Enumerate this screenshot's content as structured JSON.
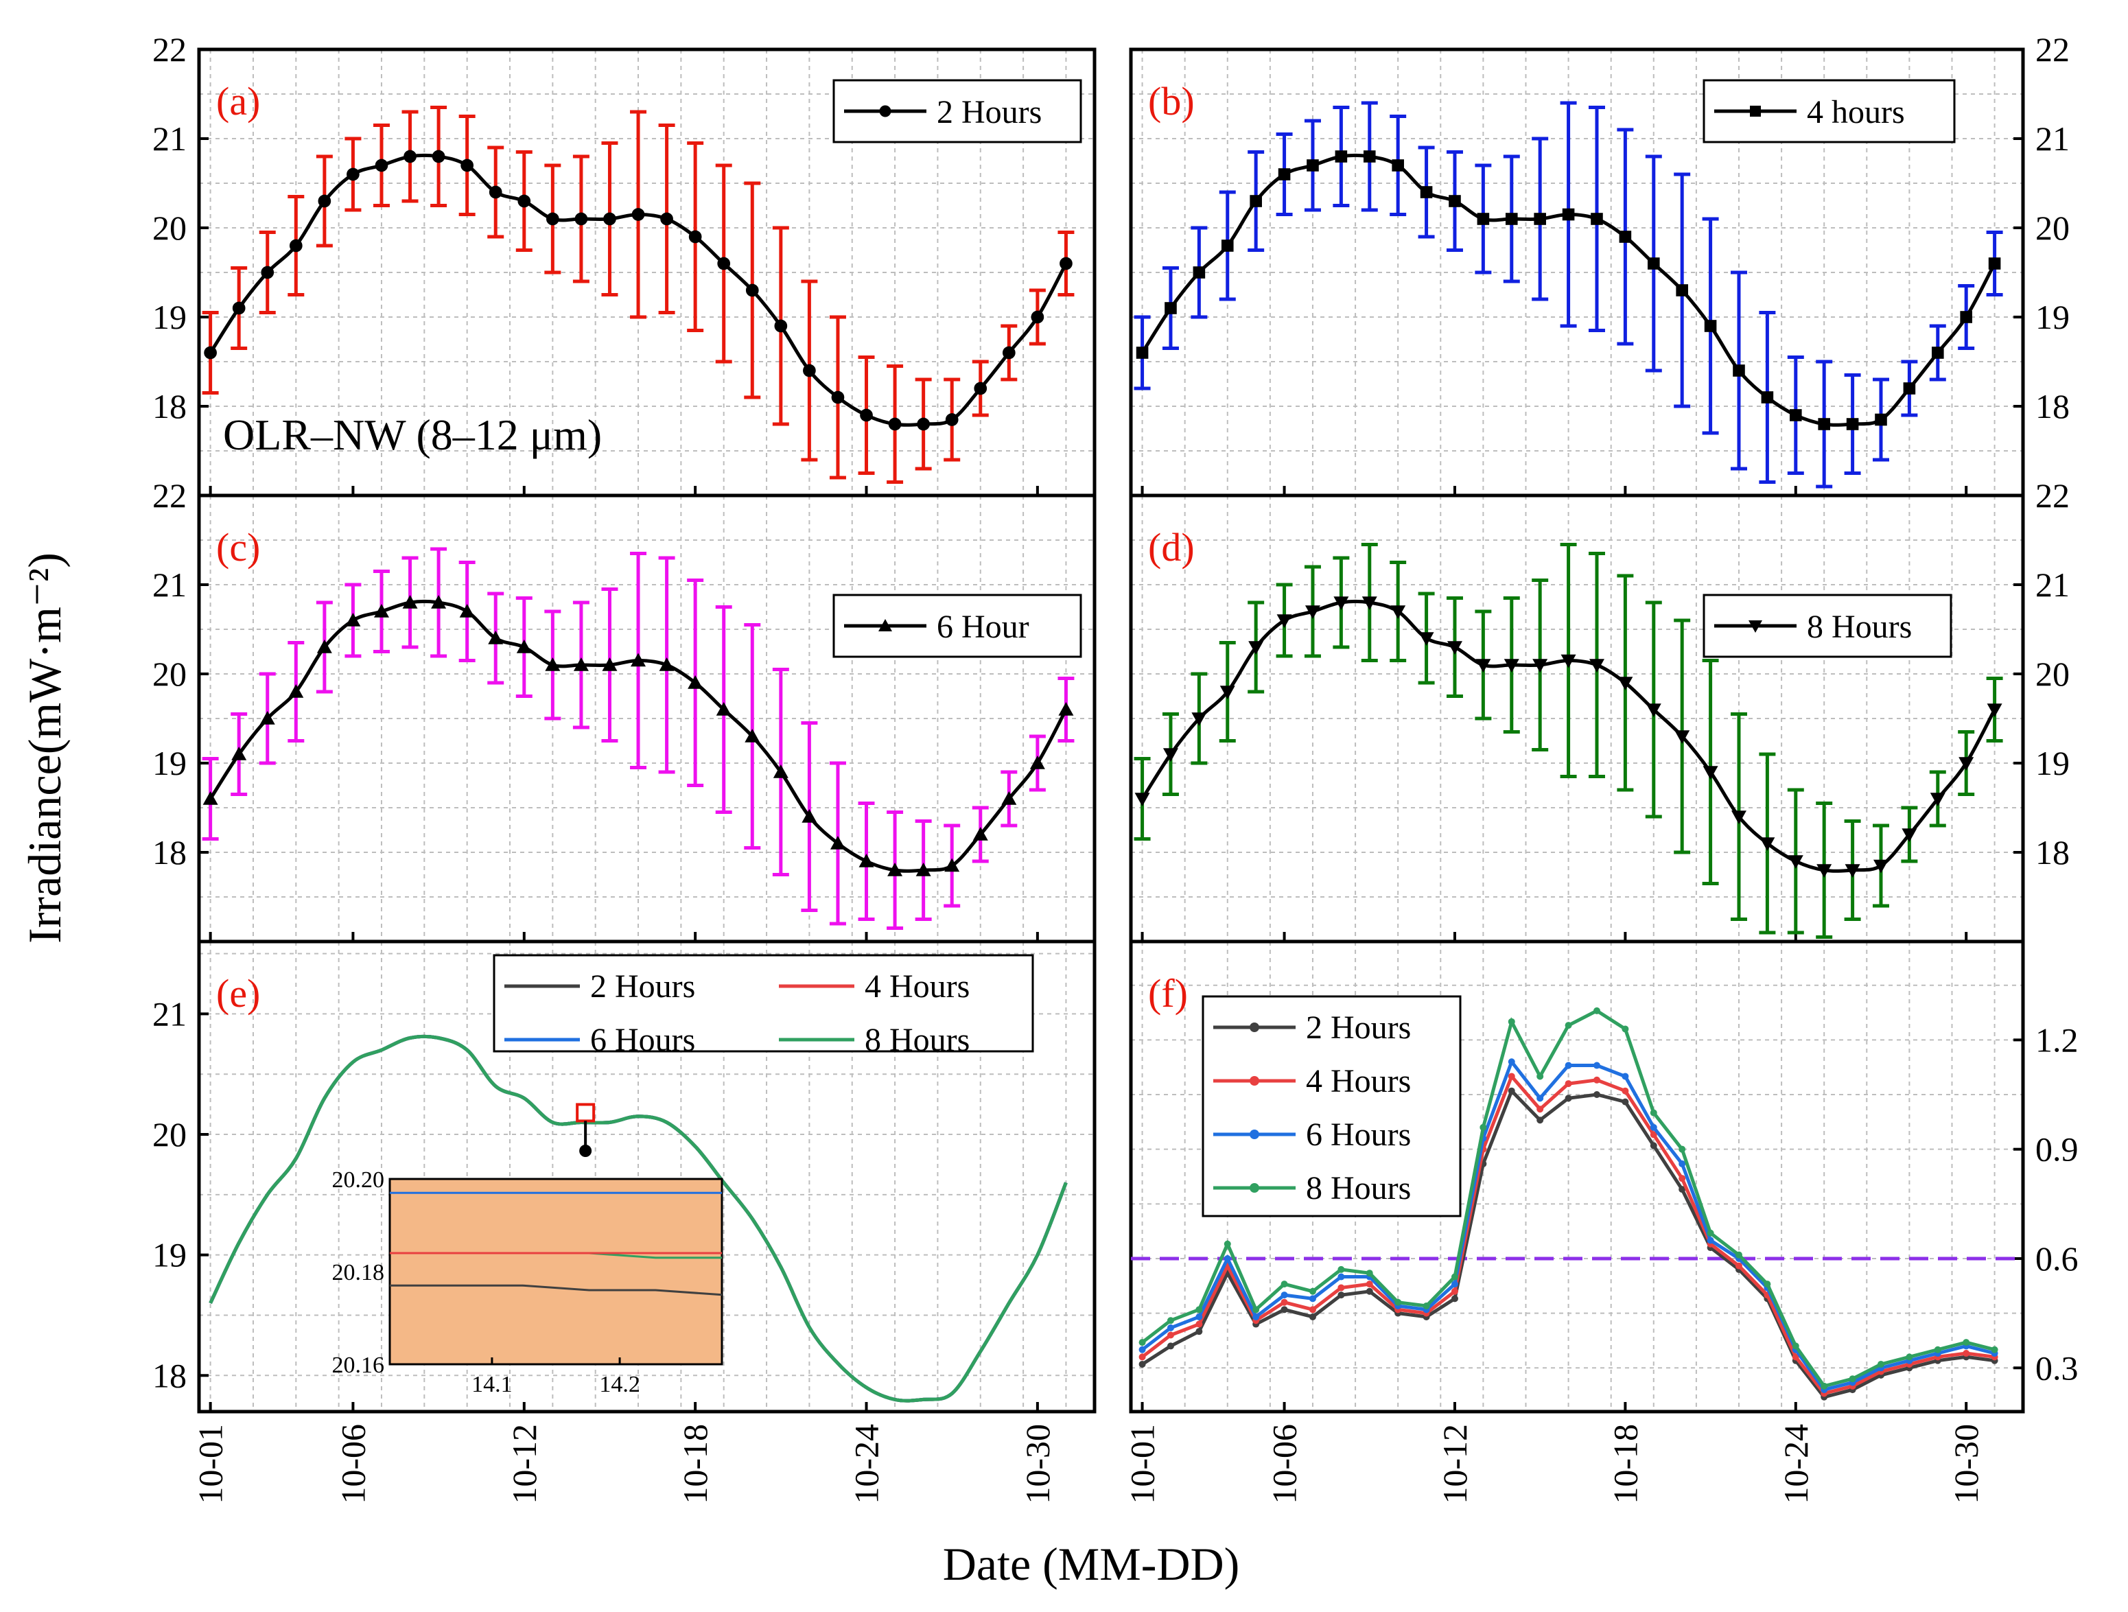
{
  "figure": {
    "ylabel": "Irradiance(mW·m⁻²)",
    "xlabel": "Date (MM-DD)",
    "annotation": "OLR–NW (8–12 μm)",
    "xticks": [
      "10-01",
      "10-06",
      "10-12",
      "10-18",
      "10-24",
      "10-30"
    ]
  },
  "chart_data": [
    {
      "id": "a",
      "type": "line",
      "panel_label": "(a)",
      "legend": "2 Hours",
      "marker": "circle",
      "error_color": "#e8180c",
      "x": [
        1,
        2,
        3,
        4,
        5,
        6,
        7,
        8,
        9,
        10,
        11,
        12,
        13,
        14,
        15,
        16,
        17,
        18,
        19,
        20,
        21,
        22,
        23,
        24,
        25,
        26,
        27,
        28,
        29,
        30,
        31
      ],
      "values": [
        18.6,
        19.1,
        19.5,
        19.8,
        20.3,
        20.6,
        20.7,
        20.8,
        20.8,
        20.7,
        20.4,
        20.3,
        20.1,
        20.1,
        20.1,
        20.15,
        20.1,
        19.9,
        19.6,
        19.3,
        18.9,
        18.4,
        18.1,
        17.9,
        17.8,
        17.8,
        17.85,
        18.2,
        18.6,
        19.0,
        19.6
      ],
      "errors": [
        0.45,
        0.45,
        0.45,
        0.55,
        0.5,
        0.4,
        0.45,
        0.5,
        0.55,
        0.55,
        0.5,
        0.55,
        0.6,
        0.7,
        0.85,
        1.15,
        1.05,
        1.05,
        1.1,
        1.2,
        1.1,
        1.0,
        0.9,
        0.65,
        0.65,
        0.5,
        0.45,
        0.3,
        0.3,
        0.3,
        0.35
      ],
      "ylim": [
        17,
        22
      ],
      "yticks": [
        18,
        19,
        20,
        21,
        22
      ],
      "yaxis_side": "left"
    },
    {
      "id": "b",
      "type": "line",
      "panel_label": "(b)",
      "legend": "4 hours",
      "marker": "square",
      "error_color": "#1020e0",
      "x": [
        1,
        2,
        3,
        4,
        5,
        6,
        7,
        8,
        9,
        10,
        11,
        12,
        13,
        14,
        15,
        16,
        17,
        18,
        19,
        20,
        21,
        22,
        23,
        24,
        25,
        26,
        27,
        28,
        29,
        30,
        31
      ],
      "values": [
        18.6,
        19.1,
        19.5,
        19.8,
        20.3,
        20.6,
        20.7,
        20.8,
        20.8,
        20.7,
        20.4,
        20.3,
        20.1,
        20.1,
        20.1,
        20.15,
        20.1,
        19.9,
        19.6,
        19.3,
        18.9,
        18.4,
        18.1,
        17.9,
        17.8,
        17.8,
        17.85,
        18.2,
        18.6,
        19.0,
        19.6
      ],
      "errors": [
        0.4,
        0.45,
        0.5,
        0.6,
        0.55,
        0.45,
        0.5,
        0.55,
        0.6,
        0.55,
        0.5,
        0.55,
        0.6,
        0.7,
        0.9,
        1.25,
        1.25,
        1.2,
        1.2,
        1.3,
        1.2,
        1.1,
        0.95,
        0.65,
        0.7,
        0.55,
        0.45,
        0.3,
        0.3,
        0.35,
        0.35
      ],
      "ylim": [
        17,
        22
      ],
      "yticks": [
        18,
        19,
        20,
        21,
        22
      ],
      "yaxis_side": "right"
    },
    {
      "id": "c",
      "type": "line",
      "panel_label": "(c)",
      "legend": "6 Hour",
      "marker": "triangle-up",
      "error_color": "#ee10ee",
      "x": [
        1,
        2,
        3,
        4,
        5,
        6,
        7,
        8,
        9,
        10,
        11,
        12,
        13,
        14,
        15,
        16,
        17,
        18,
        19,
        20,
        21,
        22,
        23,
        24,
        25,
        26,
        27,
        28,
        29,
        30,
        31
      ],
      "values": [
        18.6,
        19.1,
        19.5,
        19.8,
        20.3,
        20.6,
        20.7,
        20.8,
        20.8,
        20.7,
        20.4,
        20.3,
        20.1,
        20.1,
        20.1,
        20.15,
        20.1,
        19.9,
        19.6,
        19.3,
        18.9,
        18.4,
        18.1,
        17.9,
        17.8,
        17.8,
        17.85,
        18.2,
        18.6,
        19.0,
        19.6
      ],
      "errors": [
        0.45,
        0.45,
        0.5,
        0.55,
        0.5,
        0.4,
        0.45,
        0.5,
        0.6,
        0.55,
        0.5,
        0.55,
        0.6,
        0.7,
        0.85,
        1.2,
        1.2,
        1.15,
        1.15,
        1.25,
        1.15,
        1.05,
        0.9,
        0.65,
        0.65,
        0.55,
        0.45,
        0.3,
        0.3,
        0.3,
        0.35
      ],
      "ylim": [
        17,
        22
      ],
      "yticks": [
        18,
        19,
        20,
        21,
        22
      ],
      "yaxis_side": "left"
    },
    {
      "id": "d",
      "type": "line",
      "panel_label": "(d)",
      "legend": "8 Hours",
      "marker": "triangle-down",
      "error_color": "#0a7a0a",
      "x": [
        1,
        2,
        3,
        4,
        5,
        6,
        7,
        8,
        9,
        10,
        11,
        12,
        13,
        14,
        15,
        16,
        17,
        18,
        19,
        20,
        21,
        22,
        23,
        24,
        25,
        26,
        27,
        28,
        29,
        30,
        31
      ],
      "values": [
        18.6,
        19.1,
        19.5,
        19.8,
        20.3,
        20.6,
        20.7,
        20.8,
        20.8,
        20.7,
        20.4,
        20.3,
        20.1,
        20.1,
        20.1,
        20.15,
        20.1,
        19.9,
        19.6,
        19.3,
        18.9,
        18.4,
        18.1,
        17.9,
        17.8,
        17.8,
        17.85,
        18.2,
        18.6,
        19.0,
        19.6
      ],
      "errors": [
        0.45,
        0.45,
        0.5,
        0.55,
        0.5,
        0.4,
        0.5,
        0.5,
        0.65,
        0.55,
        0.5,
        0.55,
        0.6,
        0.75,
        0.95,
        1.3,
        1.25,
        1.2,
        1.2,
        1.3,
        1.25,
        1.15,
        1.0,
        0.8,
        0.75,
        0.55,
        0.45,
        0.3,
        0.3,
        0.35,
        0.35
      ],
      "ylim": [
        17,
        22
      ],
      "yticks": [
        18,
        19,
        20,
        21,
        22
      ],
      "yaxis_side": "right"
    },
    {
      "id": "e",
      "type": "line",
      "panel_label": "(e)",
      "legend": [
        "2 Hours",
        "4 Hours",
        "6 Hours",
        "8 Hours"
      ],
      "colors": [
        "#404040",
        "#e84040",
        "#2070e0",
        "#30a060"
      ],
      "x": [
        1,
        2,
        3,
        4,
        5,
        6,
        7,
        8,
        9,
        10,
        11,
        12,
        13,
        14,
        15,
        16,
        17,
        18,
        19,
        20,
        21,
        22,
        23,
        24,
        25,
        26,
        27,
        28,
        29,
        30,
        31
      ],
      "values": [
        18.6,
        19.1,
        19.5,
        19.8,
        20.3,
        20.6,
        20.7,
        20.8,
        20.8,
        20.7,
        20.4,
        20.3,
        20.1,
        20.1,
        20.1,
        20.15,
        20.1,
        19.9,
        19.6,
        19.3,
        18.9,
        18.4,
        18.1,
        17.9,
        17.8,
        17.8,
        17.85,
        18.2,
        18.6,
        19.0,
        19.6
      ],
      "ylim": [
        17.7,
        21.6
      ],
      "yticks": [
        18,
        19,
        20,
        21
      ],
      "yaxis_side": "left",
      "marked_point": {
        "x": 14.15,
        "y": 20.18
      },
      "inset": {
        "xlim": [
          14.02,
          14.28
        ],
        "ylim": [
          20.16,
          20.2
        ],
        "xticks": [
          "14.1",
          "14.2"
        ],
        "yticks": [
          "20.20",
          "20.18",
          "20.16"
        ],
        "bg_color": "#f4b887",
        "series": [
          {
            "name": "6 Hours",
            "color": "#2070e0",
            "y": [
              20.197,
              20.197,
              20.197,
              20.197,
              20.197,
              20.197
            ]
          },
          {
            "name": "8 Hours",
            "color": "#30a060",
            "y": [
              20.184,
              20.184,
              20.184,
              20.184,
              20.183,
              20.183
            ]
          },
          {
            "name": "4 Hours",
            "color": "#e84040",
            "y": [
              20.184,
              20.184,
              20.184,
              20.184,
              20.184,
              20.184
            ]
          },
          {
            "name": "2 Hours",
            "color": "#404040",
            "y": [
              20.177,
              20.177,
              20.177,
              20.176,
              20.176,
              20.175
            ]
          }
        ]
      }
    },
    {
      "id": "f",
      "type": "line",
      "panel_label": "(f)",
      "legend": [
        "2 Hours",
        "4 Hours",
        "6 Hours",
        "8 Hours"
      ],
      "colors": [
        "#404040",
        "#e84040",
        "#2070e0",
        "#30a060"
      ],
      "x": [
        1,
        2,
        3,
        4,
        5,
        6,
        7,
        8,
        9,
        10,
        11,
        12,
        13,
        14,
        15,
        16,
        17,
        18,
        19,
        20,
        21,
        22,
        23,
        24,
        25,
        26,
        27,
        28,
        29,
        30,
        31
      ],
      "series": [
        {
          "name": "2 Hours",
          "values": [
            0.31,
            0.36,
            0.4,
            0.56,
            0.42,
            0.46,
            0.44,
            0.5,
            0.51,
            0.45,
            0.44,
            0.49,
            0.86,
            1.06,
            0.98,
            1.04,
            1.05,
            1.03,
            0.91,
            0.79,
            0.63,
            0.57,
            0.49,
            0.32,
            0.22,
            0.24,
            0.28,
            0.3,
            0.32,
            0.33,
            0.32
          ]
        },
        {
          "name": "4 Hours",
          "values": [
            0.33,
            0.39,
            0.42,
            0.58,
            0.43,
            0.48,
            0.46,
            0.52,
            0.53,
            0.46,
            0.45,
            0.51,
            0.9,
            1.1,
            1.01,
            1.08,
            1.09,
            1.06,
            0.94,
            0.82,
            0.64,
            0.58,
            0.5,
            0.33,
            0.23,
            0.25,
            0.29,
            0.31,
            0.33,
            0.34,
            0.33
          ]
        },
        {
          "name": "6 Hours",
          "values": [
            0.35,
            0.41,
            0.44,
            0.6,
            0.44,
            0.5,
            0.49,
            0.55,
            0.55,
            0.47,
            0.46,
            0.53,
            0.93,
            1.14,
            1.04,
            1.13,
            1.13,
            1.1,
            0.96,
            0.86,
            0.65,
            0.6,
            0.52,
            0.35,
            0.24,
            0.26,
            0.3,
            0.32,
            0.34,
            0.36,
            0.34
          ]
        },
        {
          "name": "8 Hours",
          "values": [
            0.37,
            0.43,
            0.46,
            0.64,
            0.46,
            0.53,
            0.51,
            0.57,
            0.56,
            0.48,
            0.47,
            0.55,
            0.96,
            1.25,
            1.1,
            1.24,
            1.28,
            1.23,
            1.0,
            0.9,
            0.67,
            0.61,
            0.53,
            0.36,
            0.25,
            0.27,
            0.31,
            0.33,
            0.35,
            0.37,
            0.35
          ]
        }
      ],
      "ylim": [
        0.18,
        1.47
      ],
      "yticks": [
        0.3,
        0.6,
        0.9,
        1.2
      ],
      "yaxis_side": "right",
      "reference_line": {
        "y": 0.6,
        "color": "#8c30e8"
      }
    }
  ]
}
